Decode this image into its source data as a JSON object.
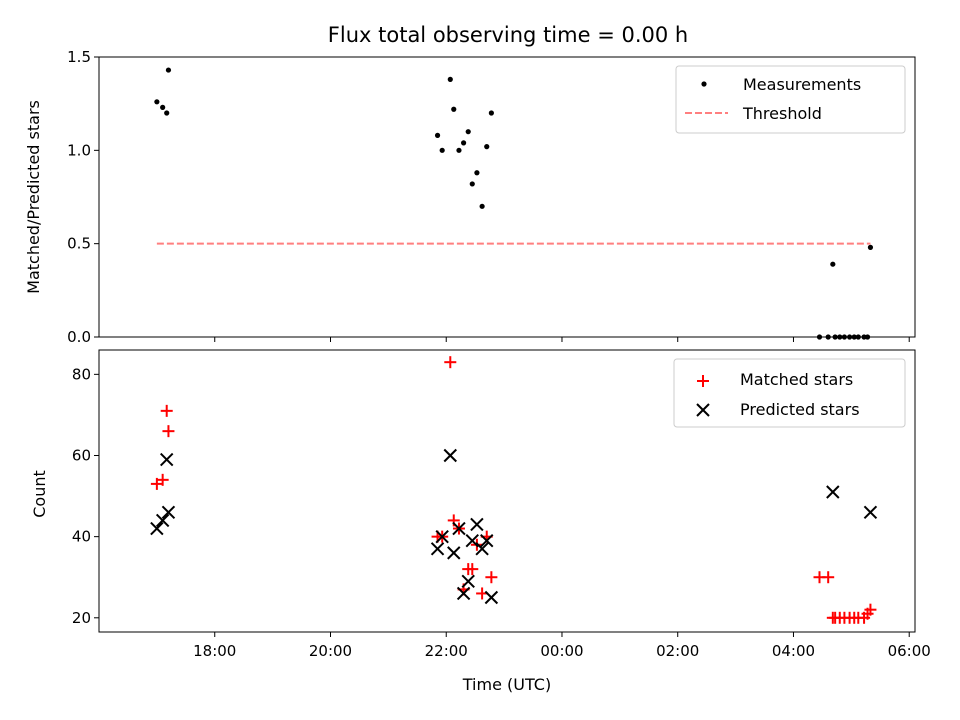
{
  "chart_data": [
    {
      "type": "scatter",
      "title": "Flux total observing time = 0.00 h",
      "xlabel": "",
      "ylabel": "Matched/Predicted stars",
      "xlim_hours": [
        16.0,
        30.1
      ],
      "ylim": [
        0,
        1.5
      ],
      "yticks": [
        "0.0",
        "0.5",
        "1.0",
        "1.5"
      ],
      "grid": false,
      "legend_position": "top-right",
      "series": [
        {
          "name": "Measurements",
          "marker": "dot",
          "color": "#000000",
          "points": [
            [
              17.0,
              1.26
            ],
            [
              17.1,
              1.23
            ],
            [
              17.17,
              1.2
            ],
            [
              17.2,
              1.43
            ],
            [
              21.85,
              1.08
            ],
            [
              21.93,
              1.0
            ],
            [
              22.07,
              1.38
            ],
            [
              22.13,
              1.22
            ],
            [
              22.22,
              1.0
            ],
            [
              22.3,
              1.04
            ],
            [
              22.38,
              1.1
            ],
            [
              22.45,
              0.82
            ],
            [
              22.53,
              0.88
            ],
            [
              22.62,
              0.7
            ],
            [
              22.7,
              1.02
            ],
            [
              22.78,
              1.2
            ],
            [
              28.45,
              0.0
            ],
            [
              28.6,
              0.0
            ],
            [
              28.68,
              0.39
            ],
            [
              28.72,
              0.0
            ],
            [
              28.8,
              0.0
            ],
            [
              28.88,
              0.0
            ],
            [
              28.97,
              0.0
            ],
            [
              29.05,
              0.0
            ],
            [
              29.12,
              0.0
            ],
            [
              29.22,
              0.0
            ],
            [
              29.28,
              0.0
            ],
            [
              29.33,
              0.48
            ]
          ]
        },
        {
          "name": "Threshold",
          "type": "line",
          "color": "#ff7f7f",
          "dashed": true,
          "points": [
            [
              17.0,
              0.5
            ],
            [
              29.33,
              0.5
            ]
          ]
        }
      ]
    },
    {
      "type": "scatter",
      "title": "",
      "xlabel": "Time (UTC)",
      "ylabel": "Count",
      "xlim_hours": [
        16.0,
        30.1
      ],
      "ylim": [
        16.5,
        86
      ],
      "yticks": [
        "20",
        "40",
        "60",
        "80"
      ],
      "xticks": [
        {
          "h": 18,
          "label": "18:00"
        },
        {
          "h": 20,
          "label": "20:00"
        },
        {
          "h": 22,
          "label": "22:00"
        },
        {
          "h": 24,
          "label": "00:00"
        },
        {
          "h": 26,
          "label": "02:00"
        },
        {
          "h": 28,
          "label": "04:00"
        },
        {
          "h": 30,
          "label": "06:00"
        }
      ],
      "grid": false,
      "legend_position": "top-right",
      "series": [
        {
          "name": "Matched stars",
          "marker": "plus",
          "color": "#ff0000",
          "points": [
            [
              17.0,
              53
            ],
            [
              17.1,
              54
            ],
            [
              17.17,
              71
            ],
            [
              17.2,
              66
            ],
            [
              21.85,
              40
            ],
            [
              21.93,
              40
            ],
            [
              22.07,
              83
            ],
            [
              22.13,
              44
            ],
            [
              22.22,
              42
            ],
            [
              22.3,
              27
            ],
            [
              22.38,
              32
            ],
            [
              22.45,
              32
            ],
            [
              22.53,
              38
            ],
            [
              22.62,
              26
            ],
            [
              22.7,
              40
            ],
            [
              22.78,
              30
            ],
            [
              28.45,
              30
            ],
            [
              28.6,
              30
            ],
            [
              28.68,
              20
            ],
            [
              28.72,
              20
            ],
            [
              28.8,
              20
            ],
            [
              28.88,
              20
            ],
            [
              28.97,
              20
            ],
            [
              29.05,
              20
            ],
            [
              29.12,
              20
            ],
            [
              29.22,
              20
            ],
            [
              29.28,
              21
            ],
            [
              29.33,
              22
            ]
          ]
        },
        {
          "name": "Predicted stars",
          "marker": "x",
          "color": "#000000",
          "points": [
            [
              17.0,
              42
            ],
            [
              17.1,
              44
            ],
            [
              17.17,
              59
            ],
            [
              17.2,
              46
            ],
            [
              21.85,
              37
            ],
            [
              21.93,
              40
            ],
            [
              22.07,
              60
            ],
            [
              22.13,
              36
            ],
            [
              22.22,
              42
            ],
            [
              22.3,
              26
            ],
            [
              22.38,
              29
            ],
            [
              22.45,
              39
            ],
            [
              22.53,
              43
            ],
            [
              22.62,
              37
            ],
            [
              22.7,
              39
            ],
            [
              22.78,
              25
            ],
            [
              28.68,
              51
            ],
            [
              29.33,
              46
            ]
          ]
        }
      ]
    }
  ]
}
